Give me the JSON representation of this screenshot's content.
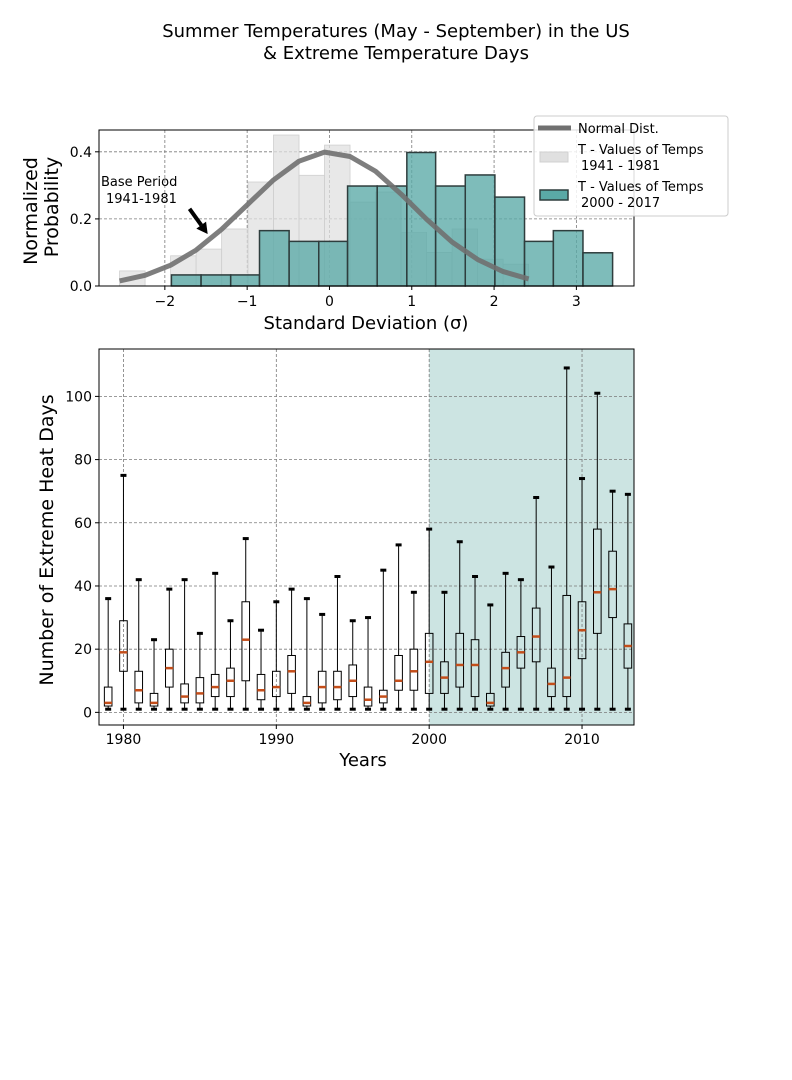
{
  "title_line1": "Summer Temperatures (May - September) in the US",
  "title_line2": "& Extreme Temperature Days",
  "chart_data": [
    {
      "type": "histogram",
      "xlabel": "Standard Deviation (σ)",
      "ylabel_line1": "Normalized",
      "ylabel_line2": "Probability",
      "xlim": [
        -2.8,
        3.7
      ],
      "ylim": [
        0,
        0.465
      ],
      "xticks": [
        -2,
        -1,
        0,
        1,
        2,
        3
      ],
      "xtick_labels": [
        "−2",
        "−1",
        "0",
        "1",
        "2",
        "3"
      ],
      "yticks": [
        0,
        0.2,
        0.4
      ],
      "ytick_labels": [
        "0.0",
        "0.2",
        "0.4"
      ],
      "grid": true,
      "legend_position": "top-right, outside",
      "annotation": {
        "line1": "Base Period",
        "line2": "1941-1981",
        "arrow_from": [
          -1.7,
          0.23
        ],
        "arrow_to": [
          -1.48,
          0.155
        ]
      },
      "hist_base": {
        "name": "T - Values of Temps",
        "name2": "1941 - 1981",
        "color": "#e0e0e0",
        "bins": [
          [
            -2.55,
            -2.24,
            0.045
          ],
          [
            -2.24,
            -1.93,
            0.0
          ],
          [
            -1.93,
            -1.62,
            0.09
          ],
          [
            -1.62,
            -1.31,
            0.11
          ],
          [
            -1.31,
            -0.99,
            0.17
          ],
          [
            -0.99,
            -0.68,
            0.31
          ],
          [
            -0.68,
            -0.37,
            0.45
          ],
          [
            -0.37,
            -0.06,
            0.33
          ],
          [
            -0.06,
            0.25,
            0.42
          ],
          [
            0.25,
            0.56,
            0.25
          ],
          [
            0.56,
            0.87,
            0.28
          ],
          [
            0.87,
            1.18,
            0.16
          ],
          [
            1.18,
            1.49,
            0.1
          ],
          [
            1.49,
            1.8,
            0.17
          ],
          [
            1.8,
            2.11,
            0.08
          ],
          [
            2.11,
            2.42,
            0.065
          ]
        ]
      },
      "hist_recent": {
        "name": "T - Values of Temps",
        "name2": "2000 - 2017",
        "color": "#5aa9a6",
        "edge": "#2e3d3d",
        "bins": [
          [
            -1.92,
            -1.56,
            0.033
          ],
          [
            -1.56,
            -1.2,
            0.033
          ],
          [
            -1.2,
            -0.85,
            0.033
          ],
          [
            -0.85,
            -0.49,
            0.165
          ],
          [
            -0.49,
            -0.13,
            0.133
          ],
          [
            -0.13,
            0.22,
            0.133
          ],
          [
            0.22,
            0.58,
            0.298
          ],
          [
            0.58,
            0.94,
            0.298
          ],
          [
            0.94,
            1.29,
            0.398
          ],
          [
            1.29,
            1.65,
            0.298
          ],
          [
            1.65,
            2.01,
            0.331
          ],
          [
            2.01,
            2.37,
            0.265
          ],
          [
            2.37,
            2.72,
            0.133
          ],
          [
            2.72,
            3.08,
            0.165
          ],
          [
            3.08,
            3.44,
            0.099
          ]
        ]
      },
      "normal_curve": {
        "name": "Normal Dist.",
        "color": "#707070",
        "x": [
          -2.55,
          -2.24,
          -1.93,
          -1.62,
          -1.31,
          -0.99,
          -0.68,
          -0.37,
          -0.06,
          0.25,
          0.56,
          0.87,
          1.18,
          1.49,
          1.8,
          2.11,
          2.42
        ],
        "y": [
          0.015,
          0.032,
          0.062,
          0.107,
          0.169,
          0.244,
          0.316,
          0.372,
          0.399,
          0.386,
          0.342,
          0.274,
          0.199,
          0.131,
          0.079,
          0.043,
          0.021
        ]
      }
    },
    {
      "type": "boxplot",
      "xlabel": "Years",
      "ylabel": "Number of Extreme Heat Days",
      "xlim": [
        1978.4,
        2013.4
      ],
      "ylim": [
        -4,
        115
      ],
      "xticks": [
        1980,
        1990,
        2000,
        2010
      ],
      "yticks": [
        0,
        20,
        40,
        60,
        80,
        100
      ],
      "grid": true,
      "highlight_span": [
        2000,
        2013.4
      ],
      "highlight_color": "#cce4e2",
      "median_color": "#c44e1a",
      "boxes": [
        {
          "year": 1979,
          "min": 1,
          "q1": 2,
          "med": 3,
          "q3": 8,
          "max": 36
        },
        {
          "year": 1980,
          "min": 1,
          "q1": 13,
          "med": 19,
          "q3": 29,
          "max": 75
        },
        {
          "year": 1981,
          "min": 1,
          "q1": 3,
          "med": 7,
          "q3": 13,
          "max": 42
        },
        {
          "year": 1982,
          "min": 1,
          "q1": 2,
          "med": 3,
          "q3": 6,
          "max": 23
        },
        {
          "year": 1983,
          "min": 1,
          "q1": 8,
          "med": 14,
          "q3": 20,
          "max": 39
        },
        {
          "year": 1984,
          "min": 1,
          "q1": 3,
          "med": 5,
          "q3": 9,
          "max": 42
        },
        {
          "year": 1985,
          "min": 1,
          "q1": 3,
          "med": 6,
          "q3": 11,
          "max": 25
        },
        {
          "year": 1986,
          "min": 1,
          "q1": 5,
          "med": 8,
          "q3": 12,
          "max": 44
        },
        {
          "year": 1987,
          "min": 1,
          "q1": 5,
          "med": 10,
          "q3": 14,
          "max": 29
        },
        {
          "year": 1988,
          "min": 1,
          "q1": 10,
          "med": 23,
          "q3": 35,
          "max": 55
        },
        {
          "year": 1989,
          "min": 1,
          "q1": 4,
          "med": 7,
          "q3": 12,
          "max": 26
        },
        {
          "year": 1990,
          "min": 1,
          "q1": 5,
          "med": 8,
          "q3": 13,
          "max": 35
        },
        {
          "year": 1991,
          "min": 1,
          "q1": 6,
          "med": 13,
          "q3": 18,
          "max": 39
        },
        {
          "year": 1992,
          "min": 1,
          "q1": 2,
          "med": 3,
          "q3": 5,
          "max": 36
        },
        {
          "year": 1993,
          "min": 1,
          "q1": 3,
          "med": 8,
          "q3": 13,
          "max": 31
        },
        {
          "year": 1994,
          "min": 1,
          "q1": 4,
          "med": 8,
          "q3": 13,
          "max": 43
        },
        {
          "year": 1995,
          "min": 1,
          "q1": 5,
          "med": 10,
          "q3": 15,
          "max": 29
        },
        {
          "year": 1996,
          "min": 1,
          "q1": 2,
          "med": 4,
          "q3": 8,
          "max": 30
        },
        {
          "year": 1997,
          "min": 1,
          "q1": 3,
          "med": 5,
          "q3": 7,
          "max": 45
        },
        {
          "year": 1998,
          "min": 1,
          "q1": 7,
          "med": 10,
          "q3": 18,
          "max": 53
        },
        {
          "year": 1999,
          "min": 1,
          "q1": 7,
          "med": 13,
          "q3": 20,
          "max": 38
        },
        {
          "year": 2000,
          "min": 1,
          "q1": 6,
          "med": 16,
          "q3": 25,
          "max": 58
        },
        {
          "year": 2001,
          "min": 1,
          "q1": 6,
          "med": 11,
          "q3": 16,
          "max": 38
        },
        {
          "year": 2002,
          "min": 1,
          "q1": 8,
          "med": 15,
          "q3": 25,
          "max": 54
        },
        {
          "year": 2003,
          "min": 1,
          "q1": 5,
          "med": 15,
          "q3": 23,
          "max": 43
        },
        {
          "year": 2004,
          "min": 1,
          "q1": 2,
          "med": 3,
          "q3": 6,
          "max": 34
        },
        {
          "year": 2005,
          "min": 1,
          "q1": 8,
          "med": 14,
          "q3": 19,
          "max": 44
        },
        {
          "year": 2006,
          "min": 1,
          "q1": 14,
          "med": 19,
          "q3": 24,
          "max": 42
        },
        {
          "year": 2007,
          "min": 1,
          "q1": 16,
          "med": 24,
          "q3": 33,
          "max": 68
        },
        {
          "year": 2008,
          "min": 1,
          "q1": 5,
          "med": 9,
          "q3": 14,
          "max": 46
        },
        {
          "year": 2009,
          "min": 1,
          "q1": 5,
          "med": 11,
          "q3": 37,
          "max": 109
        },
        {
          "year": 2010,
          "min": 1,
          "q1": 17,
          "med": 26,
          "q3": 35,
          "max": 74
        },
        {
          "year": 2011,
          "min": 1,
          "q1": 25,
          "med": 38,
          "q3": 58,
          "max": 101
        },
        {
          "year": 2012,
          "min": 1,
          "q1": 30,
          "med": 39,
          "q3": 51,
          "max": 70
        },
        {
          "year": 2013,
          "min": 1,
          "q1": 14,
          "med": 21,
          "q3": 28,
          "max": 69
        }
      ]
    }
  ]
}
